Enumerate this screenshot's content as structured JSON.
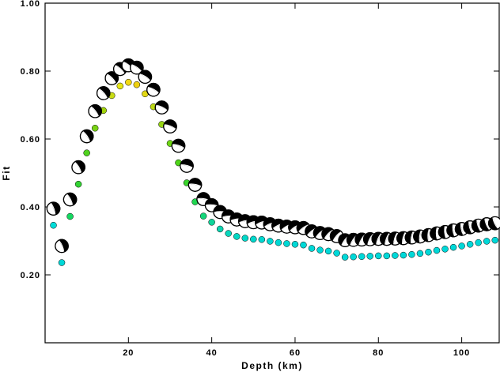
{
  "chart_data": {
    "type": "scatter",
    "xlabel": "Depth (km)",
    "ylabel": "Fit",
    "xlim": [
      0,
      109
    ],
    "ylim": [
      0,
      1.0
    ],
    "x_ticks": [
      20,
      40,
      60,
      80,
      100
    ],
    "y_ticks": [
      0.2,
      0.4,
      0.6,
      0.8,
      1.0
    ],
    "x_tick_labels": [
      "20",
      "40",
      "60",
      "80",
      "100"
    ],
    "y_tick_labels": [
      "0.20",
      "0.40",
      "0.60",
      "0.80",
      "1.00"
    ],
    "grid": false,
    "series": [
      {
        "marker": "mechanism",
        "x": [
          2,
          4,
          6,
          8,
          10,
          12,
          14,
          16,
          18,
          20,
          22,
          24,
          26,
          28,
          30,
          32,
          34,
          36,
          38,
          40,
          42,
          44,
          46,
          48,
          50,
          52,
          54,
          56,
          58,
          60,
          62,
          64,
          66,
          68,
          70,
          72,
          74,
          76,
          78,
          80,
          82,
          84,
          86,
          88,
          90,
          92,
          94,
          96,
          98,
          100,
          102,
          104,
          106,
          108
        ],
        "y": [
          0.395,
          0.285,
          0.422,
          0.517,
          0.608,
          0.682,
          0.735,
          0.779,
          0.806,
          0.817,
          0.81,
          0.783,
          0.745,
          0.693,
          0.637,
          0.58,
          0.521,
          0.465,
          0.423,
          0.405,
          0.385,
          0.372,
          0.363,
          0.358,
          0.355,
          0.354,
          0.349,
          0.345,
          0.342,
          0.34,
          0.338,
          0.328,
          0.323,
          0.32,
          0.314,
          0.302,
          0.303,
          0.304,
          0.305,
          0.306,
          0.306,
          0.307,
          0.308,
          0.31,
          0.313,
          0.317,
          0.322,
          0.326,
          0.331,
          0.335,
          0.34,
          0.345,
          0.349,
          0.352
        ]
      },
      {
        "marker": "dot",
        "x": [
          2,
          4,
          6,
          8,
          10,
          12,
          14,
          16,
          18,
          20,
          22,
          24,
          26,
          28,
          30,
          32,
          34,
          36,
          38,
          40,
          42,
          44,
          46,
          48,
          50,
          52,
          54,
          56,
          58,
          60,
          62,
          64,
          66,
          68,
          70,
          72,
          74,
          76,
          78,
          80,
          82,
          84,
          86,
          88,
          90,
          92,
          94,
          96,
          98,
          100,
          102,
          104,
          106,
          108
        ],
        "y": [
          0.346,
          0.236,
          0.372,
          0.467,
          0.559,
          0.632,
          0.684,
          0.728,
          0.756,
          0.767,
          0.76,
          0.733,
          0.695,
          0.643,
          0.587,
          0.53,
          0.471,
          0.415,
          0.373,
          0.355,
          0.335,
          0.322,
          0.313,
          0.308,
          0.305,
          0.304,
          0.299,
          0.295,
          0.292,
          0.29,
          0.288,
          0.278,
          0.273,
          0.27,
          0.264,
          0.252,
          0.253,
          0.254,
          0.255,
          0.256,
          0.256,
          0.257,
          0.258,
          0.26,
          0.263,
          0.267,
          0.272,
          0.276,
          0.281,
          0.285,
          0.29,
          0.295,
          0.299,
          0.302
        ]
      }
    ]
  },
  "colors": {
    "dot_colors": [
      "#00dcd8",
      "#00d8d8",
      "#14d860",
      "#32d232",
      "#50d21e",
      "#78d214",
      "#a0d20a",
      "#c8dc14",
      "#e6e614",
      "#f0d814",
      "#eed010",
      "#e2d814",
      "#bcd814",
      "#96d414",
      "#6ed614",
      "#4ed418",
      "#3ad42c",
      "#20d650",
      "#14d67a",
      "#10d49a",
      "#0cd4b0",
      "#08d6bc",
      "#04d8c4",
      "#00d8c8",
      "#00d8cc",
      "#00d8d0",
      "#00d8d2",
      "#00d8d4",
      "#00d8d4",
      "#00d8d6",
      "#00d8d6",
      "#00d8d6",
      "#00d8d8",
      "#00d8d8",
      "#00d8d8",
      "#00d8d8",
      "#00d8d8",
      "#00d8d8",
      "#00d8d8",
      "#00d8d8",
      "#00d8d8",
      "#00d8d8",
      "#00d8d8",
      "#00d8d8",
      "#00d8d8",
      "#00d8d8",
      "#00d8d8",
      "#00d8d8",
      "#00d8d8",
      "#00d8d8",
      "#00d8d8",
      "#00d8d8",
      "#00d8d8",
      "#00d8d8"
    ],
    "axis": "#000000",
    "background": "#ffffff"
  }
}
